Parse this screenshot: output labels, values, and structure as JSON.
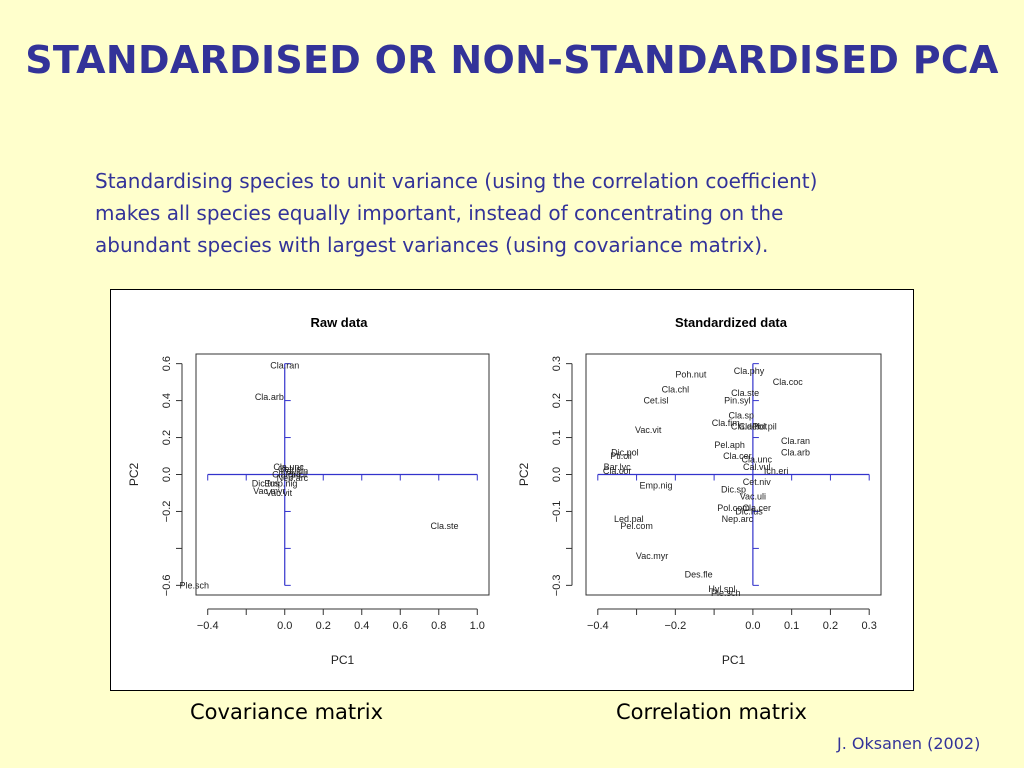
{
  "slide": {
    "title": "STANDARDISED OR NON-STANDARDISED PCA",
    "intro_lines": [
      "Standardising species to unit variance (using the correlation coefficient)",
      "makes all species equally important, instead of concentrating on the",
      "abundant species with largest variances (using covariance matrix)."
    ],
    "caption_left": "Covariance matrix",
    "caption_right": "Correlation matrix",
    "credit": "J. Oksanen (2002)"
  },
  "colors": {
    "background": "#ffffcc",
    "title": "#333399",
    "text": "#333399",
    "plot_axes": "#333333",
    "arrows": "#3333cc",
    "labels": "#222222"
  },
  "chart_data": [
    {
      "type": "scatter",
      "title": "Raw data",
      "xlabel": "PC1",
      "ylabel": "PC2",
      "xlim": [
        -0.4,
        1.0
      ],
      "ylim": [
        -0.6,
        0.6
      ],
      "xticks": [
        -0.4,
        -0.2,
        0.0,
        0.2,
        0.4,
        0.6,
        0.8,
        1.0
      ],
      "xtick_labels": [
        "−0.4",
        "",
        "0.0",
        "0.2",
        "0.4",
        "0.6",
        "0.8",
        "1.0"
      ],
      "yticks": [
        -0.6,
        -0.4,
        -0.2,
        0.0,
        0.2,
        0.4,
        0.6
      ],
      "ytick_labels": [
        "−0.6",
        "",
        "−0.2",
        "0.0",
        "0.2",
        "0.4",
        "0.6"
      ],
      "grid": false,
      "points": [
        {
          "label": "Cla.ran",
          "x": 0.0,
          "y": 0.59
        },
        {
          "label": "Cla.arb",
          "x": -0.08,
          "y": 0.42
        },
        {
          "label": "Cla.ste",
          "x": 0.83,
          "y": -0.28
        },
        {
          "label": "Ple.sch",
          "x": -0.47,
          "y": -0.6
        },
        {
          "label": "Dic.fus",
          "x": -0.1,
          "y": -0.05
        },
        {
          "label": "Vac.myr",
          "x": -0.08,
          "y": -0.09
        },
        {
          "label": "Vac.vit",
          "x": -0.03,
          "y": -0.1
        },
        {
          "label": "Emp.nig",
          "x": -0.02,
          "y": -0.05
        },
        {
          "label": "Cla.unc",
          "x": 0.02,
          "y": 0.04
        },
        {
          "label": "Cla.gra",
          "x": 0.01,
          "y": 0.0
        },
        {
          "label": "Pol.jun",
          "x": 0.05,
          "y": 0.02
        },
        {
          "label": "Nep.arc",
          "x": 0.04,
          "y": -0.02
        },
        {
          "label": "Cet.isl",
          "x": 0.03,
          "y": 0.03
        },
        {
          "label": "Pti.cil",
          "x": 0.06,
          "y": 0.0
        }
      ]
    },
    {
      "type": "scatter",
      "title": "Standardized data",
      "xlabel": "PC1",
      "ylabel": "PC2",
      "xlim": [
        -0.4,
        0.3
      ],
      "ylim": [
        -0.3,
        0.3
      ],
      "xticks": [
        -0.4,
        -0.3,
        -0.2,
        -0.1,
        0.0,
        0.1,
        0.2,
        0.3
      ],
      "xtick_labels": [
        "−0.4",
        "",
        "−0.2",
        "",
        "0.0",
        "0.1",
        "0.2",
        "0.3"
      ],
      "yticks": [
        -0.3,
        -0.2,
        -0.1,
        0.0,
        0.1,
        0.2,
        0.3
      ],
      "ytick_labels": [
        "−0.3",
        "",
        "−0.1",
        "0.0",
        "0.1",
        "0.2",
        "0.3"
      ],
      "grid": false,
      "points": [
        {
          "label": "Cla.phy",
          "x": -0.01,
          "y": 0.28
        },
        {
          "label": "Poh.nut",
          "x": -0.16,
          "y": 0.27
        },
        {
          "label": "Cla.coc",
          "x": 0.09,
          "y": 0.25
        },
        {
          "label": "Cla.chl",
          "x": -0.2,
          "y": 0.23
        },
        {
          "label": "Cla.ste",
          "x": -0.02,
          "y": 0.22
        },
        {
          "label": "Cet.isl",
          "x": -0.25,
          "y": 0.2
        },
        {
          "label": "Pin.syl",
          "x": -0.04,
          "y": 0.2
        },
        {
          "label": "Cla.sp",
          "x": -0.03,
          "y": 0.16
        },
        {
          "label": "Cla.fim",
          "x": -0.07,
          "y": 0.14
        },
        {
          "label": "Cla.def",
          "x": -0.02,
          "y": 0.13
        },
        {
          "label": "Cla.bot",
          "x": 0.0,
          "y": 0.13
        },
        {
          "label": "Pol.pil",
          "x": 0.03,
          "y": 0.13
        },
        {
          "label": "Vac.vit",
          "x": -0.27,
          "y": 0.12
        },
        {
          "label": "Cla.ran",
          "x": 0.11,
          "y": 0.09
        },
        {
          "label": "Pel.aph",
          "x": -0.06,
          "y": 0.08
        },
        {
          "label": "Cla.arb",
          "x": 0.11,
          "y": 0.06
        },
        {
          "label": "Dic.pol",
          "x": -0.33,
          "y": 0.06
        },
        {
          "label": "Cla.cer",
          "x": -0.04,
          "y": 0.05
        },
        {
          "label": "Cla.unc",
          "x": 0.01,
          "y": 0.04
        },
        {
          "label": "Pti.cil",
          "x": -0.34,
          "y": 0.05
        },
        {
          "label": "Cal.vul",
          "x": 0.01,
          "y": 0.02
        },
        {
          "label": "Ich.eri",
          "x": 0.06,
          "y": 0.01
        },
        {
          "label": "Bar.lyc",
          "x": -0.35,
          "y": 0.02
        },
        {
          "label": "Cla.cor",
          "x": -0.35,
          "y": 0.01
        },
        {
          "label": "Cet.niv",
          "x": 0.01,
          "y": -0.02
        },
        {
          "label": "Emp.nig",
          "x": -0.25,
          "y": -0.03
        },
        {
          "label": "Dic.sp",
          "x": -0.05,
          "y": -0.04
        },
        {
          "label": "Vac.uli",
          "x": 0.0,
          "y": -0.06
        },
        {
          "label": "Pol.com",
          "x": -0.05,
          "y": -0.09
        },
        {
          "label": "Cla.cer",
          "x": 0.01,
          "y": -0.09
        },
        {
          "label": "Dic.fus",
          "x": -0.01,
          "y": -0.1
        },
        {
          "label": "Led.pal",
          "x": -0.32,
          "y": -0.12
        },
        {
          "label": "Nep.arc",
          "x": -0.04,
          "y": -0.12
        },
        {
          "label": "Pel.com",
          "x": -0.3,
          "y": -0.14
        },
        {
          "label": "Vac.myr",
          "x": -0.26,
          "y": -0.22
        },
        {
          "label": "Des.fle",
          "x": -0.14,
          "y": -0.27
        },
        {
          "label": "Hyl.spl",
          "x": -0.08,
          "y": -0.31
        },
        {
          "label": "Ple.sch",
          "x": -0.07,
          "y": -0.32
        }
      ]
    }
  ]
}
